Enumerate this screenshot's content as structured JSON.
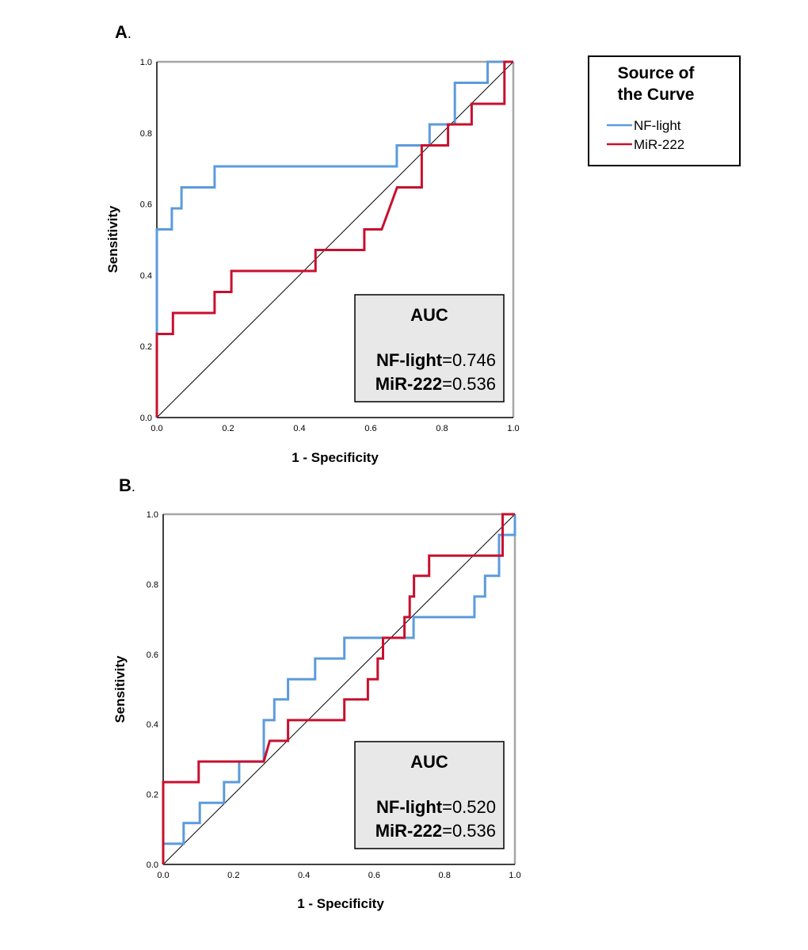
{
  "legend": {
    "title_lines": [
      "Source of",
      "the Curve"
    ],
    "items": [
      {
        "name": "NF-light",
        "color": "#5b9bdc"
      },
      {
        "name": "MiR-222",
        "color": "#c8102e"
      }
    ]
  },
  "chart_data": [
    {
      "type": "line",
      "panel_label": "A",
      "title": "",
      "xlabel": "1 - Specificity",
      "ylabel": "Sensitivity",
      "xlim": [
        0,
        1
      ],
      "ylim": [
        0,
        1
      ],
      "ticks": [
        "0.0",
        "0.2",
        "0.4",
        "0.6",
        "0.8",
        "1.0"
      ],
      "tick_values": [
        0,
        0.2,
        0.4,
        0.6,
        0.8,
        1.0
      ],
      "reference_line": true,
      "auc_box": {
        "title": "AUC",
        "rows": [
          {
            "label": "NF-light",
            "value": "=0.746"
          },
          {
            "label": "MiR-222",
            "value": "=0.536"
          }
        ]
      },
      "series": [
        {
          "name": "NF-light",
          "color": "#5b9bdc",
          "points": [
            [
              0,
              0
            ],
            [
              0,
              0.529
            ],
            [
              0.042,
              0.529
            ],
            [
              0.042,
              0.588
            ],
            [
              0.069,
              0.588
            ],
            [
              0.069,
              0.647
            ],
            [
              0.162,
              0.647
            ],
            [
              0.162,
              0.706
            ],
            [
              0.673,
              0.706
            ],
            [
              0.673,
              0.765
            ],
            [
              0.765,
              0.765
            ],
            [
              0.765,
              0.824
            ],
            [
              0.836,
              0.824
            ],
            [
              0.836,
              0.941
            ],
            [
              0.928,
              0.941
            ],
            [
              0.928,
              1.0
            ],
            [
              1.0,
              1.0
            ]
          ]
        },
        {
          "name": "MiR-222",
          "color": "#c8102e",
          "points": [
            [
              0,
              0
            ],
            [
              0,
              0.235
            ],
            [
              0.045,
              0.235
            ],
            [
              0.045,
              0.294
            ],
            [
              0.162,
              0.294
            ],
            [
              0.162,
              0.353
            ],
            [
              0.209,
              0.353
            ],
            [
              0.209,
              0.412
            ],
            [
              0.445,
              0.412
            ],
            [
              0.445,
              0.471
            ],
            [
              0.582,
              0.471
            ],
            [
              0.582,
              0.529
            ],
            [
              0.631,
              0.529
            ],
            [
              0.674,
              0.647
            ],
            [
              0.743,
              0.647
            ],
            [
              0.743,
              0.765
            ],
            [
              0.817,
              0.765
            ],
            [
              0.817,
              0.824
            ],
            [
              0.883,
              0.824
            ],
            [
              0.883,
              0.882
            ],
            [
              0.975,
              0.882
            ],
            [
              0.975,
              1.0
            ],
            [
              1.0,
              1.0
            ]
          ]
        }
      ]
    },
    {
      "type": "line",
      "panel_label": "B",
      "title": "",
      "xlabel": "1 - Specificity",
      "ylabel": "Sensitivity",
      "xlim": [
        0,
        1
      ],
      "ylim": [
        0,
        1
      ],
      "ticks": [
        "0.0",
        "0.2",
        "0.4",
        "0.6",
        "0.8",
        "1.0"
      ],
      "tick_values": [
        0,
        0.2,
        0.4,
        0.6,
        0.8,
        1.0
      ],
      "reference_line": true,
      "auc_box": {
        "title": "AUC",
        "rows": [
          {
            "label": "NF-light",
            "value": "=0.520"
          },
          {
            "label": "MiR-222",
            "value": "=0.536"
          }
        ]
      },
      "series": [
        {
          "name": "NF-light",
          "color": "#5b9bdc",
          "points": [
            [
              0,
              0
            ],
            [
              0,
              0.059
            ],
            [
              0.058,
              0.059
            ],
            [
              0.058,
              0.118
            ],
            [
              0.104,
              0.118
            ],
            [
              0.104,
              0.176
            ],
            [
              0.173,
              0.176
            ],
            [
              0.173,
              0.235
            ],
            [
              0.216,
              0.235
            ],
            [
              0.216,
              0.294
            ],
            [
              0.286,
              0.294
            ],
            [
              0.286,
              0.412
            ],
            [
              0.316,
              0.412
            ],
            [
              0.316,
              0.471
            ],
            [
              0.355,
              0.471
            ],
            [
              0.355,
              0.529
            ],
            [
              0.432,
              0.529
            ],
            [
              0.432,
              0.588
            ],
            [
              0.515,
              0.588
            ],
            [
              0.515,
              0.647
            ],
            [
              0.712,
              0.647
            ],
            [
              0.712,
              0.706
            ],
            [
              0.885,
              0.706
            ],
            [
              0.885,
              0.765
            ],
            [
              0.915,
              0.765
            ],
            [
              0.915,
              0.824
            ],
            [
              0.955,
              0.824
            ],
            [
              0.955,
              0.941
            ],
            [
              0.975,
              0.941
            ],
            [
              1.0,
              0.941
            ],
            [
              1.0,
              1.0
            ]
          ]
        },
        {
          "name": "MiR-222",
          "color": "#c8102e",
          "points": [
            [
              0,
              0
            ],
            [
              0,
              0.235
            ],
            [
              0.101,
              0.235
            ],
            [
              0.101,
              0.294
            ],
            [
              0.286,
              0.294
            ],
            [
              0.303,
              0.353
            ],
            [
              0.355,
              0.353
            ],
            [
              0.355,
              0.412
            ],
            [
              0.515,
              0.412
            ],
            [
              0.515,
              0.471
            ],
            [
              0.582,
              0.471
            ],
            [
              0.582,
              0.529
            ],
            [
              0.61,
              0.529
            ],
            [
              0.61,
              0.588
            ],
            [
              0.625,
              0.588
            ],
            [
              0.625,
              0.647
            ],
            [
              0.686,
              0.647
            ],
            [
              0.686,
              0.706
            ],
            [
              0.701,
              0.706
            ],
            [
              0.701,
              0.765
            ],
            [
              0.713,
              0.765
            ],
            [
              0.713,
              0.824
            ],
            [
              0.756,
              0.824
            ],
            [
              0.756,
              0.882
            ],
            [
              0.965,
              0.882
            ],
            [
              0.965,
              1.0
            ],
            [
              1.0,
              1.0
            ]
          ]
        }
      ]
    }
  ]
}
